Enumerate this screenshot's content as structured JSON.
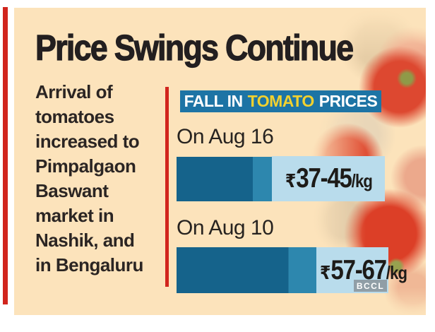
{
  "panel": {
    "title": "Price Swings Continue",
    "description": "Arrival of\ntomatoes\nincreased to\nPimpalgaon\nBaswant\nmarket in\nNashik, and\nin Bengaluru",
    "credit": "BCCL"
  },
  "chart": {
    "header": {
      "prefix": "FALL IN",
      "highlight": "TOMATO",
      "suffix": "PRICES"
    },
    "rows": [
      {
        "label": "On Aug 16",
        "currency": "₹",
        "price": "37-45",
        "unit": "/kg"
      },
      {
        "label": "On Aug 10",
        "currency": "₹",
        "price": "57-67",
        "unit": "/kg"
      }
    ]
  },
  "chart_data": {
    "type": "bar",
    "orientation": "horizontal",
    "title": "FALL IN TOMATO PRICES",
    "categories": [
      "On Aug 16",
      "On Aug 10"
    ],
    "series": [
      {
        "name": "price low (₹/kg)",
        "values": [
          37,
          57
        ]
      },
      {
        "name": "price high (₹/kg)",
        "values": [
          45,
          67
        ]
      }
    ],
    "value_labels": [
      "₹37-45/kg",
      "₹57-67/kg"
    ],
    "bar_lengths_relative": [
      0.68,
      1.0
    ],
    "unit": "₹/kg",
    "legend": "none",
    "grid": false
  },
  "colors": {
    "background_cream": "#fce3bb",
    "accent_red": "#d1251d",
    "header_blue": "#1d74a5",
    "highlight_yellow": "#f2d12f",
    "bar_dark": "#15638b",
    "bar_light": "#2d87ae",
    "label_box_blue": "#b9dcec",
    "text_dark": "#231f20",
    "badge_gray": "#8c98a0"
  }
}
